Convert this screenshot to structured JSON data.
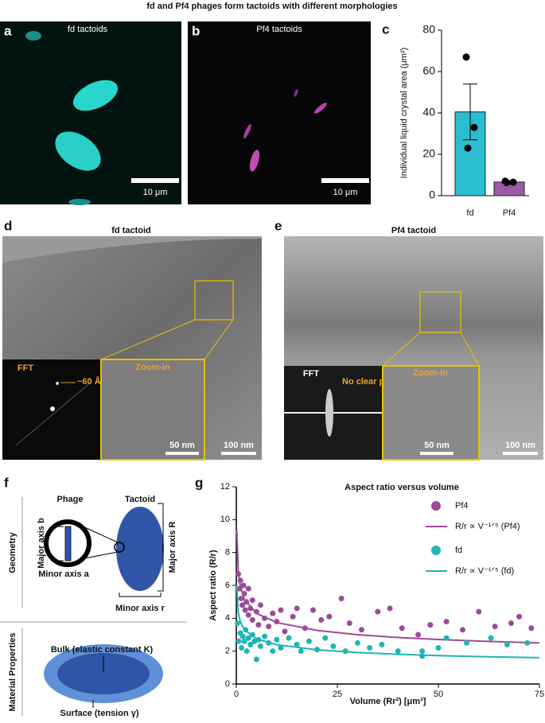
{
  "title": "fd and Pf4 phages form tactoids with different morphologies",
  "panels": {
    "a": {
      "letter": "a",
      "label": "fd tactoids",
      "scale": "10 μm"
    },
    "b": {
      "letter": "b",
      "label": "Pf4 tactoids",
      "scale": "10 μm"
    },
    "d": {
      "letter": "d",
      "title": "fd tactoid",
      "fft": "FFT",
      "peak": "~60 Å",
      "zoom": "Zoom-in",
      "zoom_scale": "50 nm",
      "scale": "100 nm"
    },
    "e": {
      "letter": "e",
      "title": "Pf4 tactoid",
      "fft": "FFT",
      "peak": "No clear peak",
      "zoom": "Zoom-in",
      "zoom_scale": "50 nm",
      "scale": "100 nm"
    },
    "f": {
      "letter": "f",
      "geometry": "Geometry",
      "phage": "Phage",
      "tactoid": "Tactoid",
      "major_b": "Major axis b",
      "minor_a": "Minor axis a",
      "major_R": "Major axis R",
      "minor_r": "Minor axis r",
      "material": "Material Properties",
      "bulk": "Bulk (elastic constant K)",
      "surface": "Surface (tension γ)"
    }
  },
  "chart_data": [
    {
      "type": "bar",
      "panel_label": "c",
      "y_label": "Individual liquid crystal area (μm²)",
      "categories": [
        "fd",
        "Pf4"
      ],
      "values": [
        40.5,
        6.6
      ],
      "errors": [
        13.5,
        0.4
      ],
      "points": [
        [
          67,
          33,
          23
        ],
        [
          7,
          6.5,
          6.3
        ]
      ],
      "colors": [
        "#2bbdd0",
        "#9a5aa6"
      ],
      "ylim": [
        0,
        80
      ],
      "yticks": [
        0,
        20,
        40,
        60,
        80
      ]
    },
    {
      "type": "scatter",
      "panel_label": "g",
      "title": "Aspect ratio versus volume",
      "x_label": "Volume (Rr²) [μm³]",
      "y_label": "Aspect ratio (R/r)",
      "xlim": [
        0,
        75
      ],
      "xticks": [
        0,
        25,
        50,
        75
      ],
      "ylim": [
        0,
        12
      ],
      "yticks": [
        0,
        2,
        4,
        6,
        8,
        10,
        12
      ],
      "series": [
        {
          "name": "Pf4",
          "type": "scatter",
          "color": "#9c4a9a",
          "x": [
            0.5,
            0.8,
            1,
            1.2,
            1.5,
            1.8,
            2,
            2.2,
            2.5,
            3,
            3,
            3.5,
            4,
            4,
            5,
            5.5,
            6,
            7,
            8,
            9,
            10,
            11,
            12,
            14,
            15,
            17,
            19,
            21,
            23,
            26,
            28,
            31,
            35,
            38,
            41,
            45,
            48,
            52,
            56,
            60,
            64,
            68,
            70,
            73
          ],
          "values": [
            6.7,
            5.8,
            6.3,
            5.2,
            4.8,
            6.0,
            5.5,
            4.5,
            5.0,
            4.2,
            5.8,
            4.6,
            3.9,
            5.1,
            4.4,
            3.6,
            4.8,
            4.0,
            3.5,
            4.3,
            3.8,
            4.5,
            3.2,
            4.1,
            4.6,
            3.4,
            4.5,
            3.9,
            4.1,
            5.2,
            3.7,
            3.3,
            4.4,
            4.6,
            3.4,
            3.0,
            3.6,
            3.8,
            3.3,
            4.4,
            3.5,
            3.7,
            4.1,
            3.4
          ]
        },
        {
          "name": "R/r ∝ V⁻¹ᐟ⁵ (Pf4)",
          "type": "line",
          "color": "#9c4a9a",
          "x": [
            0.1,
            0.5,
            1,
            2,
            5,
            10,
            20,
            30,
            40,
            50,
            60,
            75
          ],
          "values": [
            9.4,
            6.81,
            5.93,
            5.16,
            4.3,
            3.74,
            3.26,
            3.0,
            2.83,
            2.71,
            2.61,
            2.5
          ]
        },
        {
          "name": "fd",
          "type": "scatter",
          "color": "#1fb5b5",
          "x": [
            0.3,
            0.6,
            1,
            1.3,
            1.6,
            2,
            2.3,
            2.6,
            3,
            3.5,
            4,
            4.5,
            5,
            5.5,
            6,
            7,
            8,
            9,
            10,
            11,
            13,
            15,
            16,
            18,
            20,
            22,
            24,
            27,
            30,
            33,
            36,
            40,
            46,
            46,
            50,
            52,
            57,
            63,
            67,
            72
          ],
          "values": [
            3.7,
            2.6,
            3.1,
            2.2,
            2.9,
            2.6,
            3.3,
            2.0,
            2.8,
            2.4,
            3.0,
            2.6,
            1.5,
            2.7,
            2.3,
            2.9,
            2.5,
            2.0,
            2.7,
            2.2,
            2.8,
            2.4,
            2.0,
            2.6,
            2.1,
            2.8,
            2.3,
            2.0,
            2.5,
            2.2,
            2.4,
            2.0,
            1.7,
            2.0,
            2.2,
            2.8,
            2.5,
            2.8,
            2.4,
            2.5
          ]
        },
        {
          "name": "R/r ∝ V⁻¹ᐟ⁵ (fd)",
          "type": "line",
          "color": "#1fb5b5",
          "x": [
            0.1,
            0.5,
            1,
            2,
            5,
            10,
            20,
            30,
            40,
            50,
            60,
            75
          ],
          "values": [
            6.01,
            4.35,
            3.79,
            3.3,
            2.75,
            2.39,
            2.08,
            1.92,
            1.81,
            1.73,
            1.67,
            1.6
          ]
        }
      ]
    }
  ]
}
